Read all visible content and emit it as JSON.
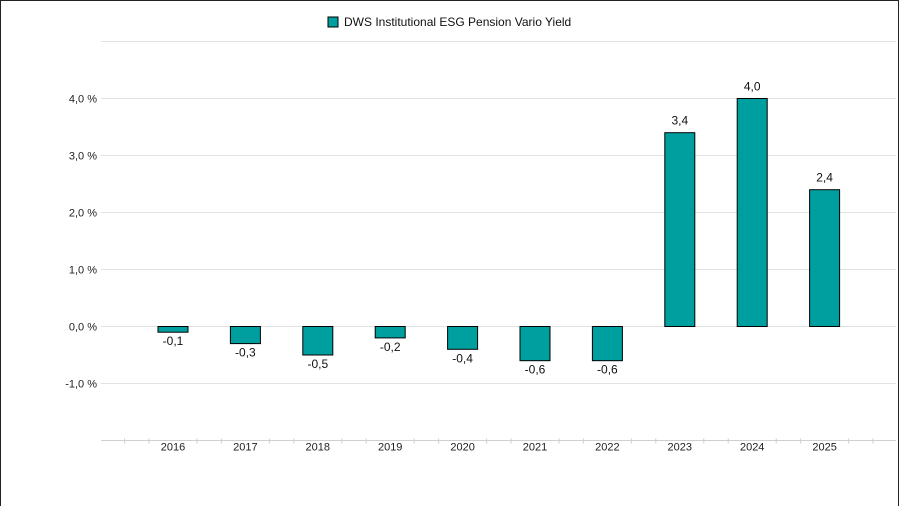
{
  "chart_data": {
    "type": "bar",
    "title": "",
    "xlabel": "",
    "ylabel": "",
    "categories": [
      "2016",
      "2017",
      "2018",
      "2019",
      "2020",
      "2021",
      "2022",
      "2023",
      "2024",
      "2025"
    ],
    "series": [
      {
        "name": "DWS Institutional ESG Pension Vario Yield",
        "values": [
          -0.1,
          -0.3,
          -0.5,
          -0.2,
          -0.4,
          -0.6,
          -0.6,
          3.4,
          4.0,
          2.4
        ],
        "value_labels": [
          "-0,1",
          "-0,3",
          "-0,5",
          "-0,2",
          "-0,4",
          "-0,6",
          "-0,6",
          "3,4",
          "4,0",
          "2,4"
        ],
        "color": "#009f9f"
      }
    ],
    "yticks": [
      -1.0,
      0.0,
      1.0,
      2.0,
      3.0,
      4.0
    ],
    "ytick_labels": [
      "-1,0 %",
      "0,0 %",
      "1,0 %",
      "2,0 %",
      "3,0 %",
      "4,0 %"
    ],
    "ylim": [
      -2.0,
      5.0
    ],
    "grid": true,
    "legend": "top-center"
  }
}
